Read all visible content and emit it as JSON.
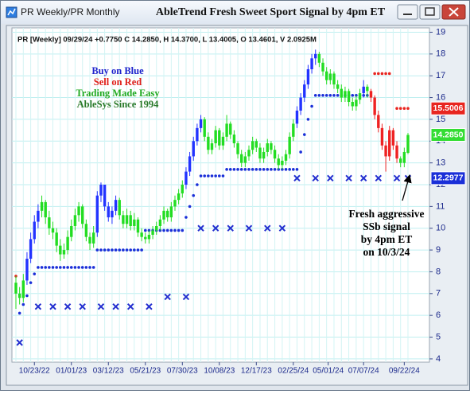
{
  "chart_data": {
    "type": "candlestick",
    "tab_label": "PR Weekly/PR Monthly",
    "title": "AbleTrend Fresh Sweet Sport Signal by 4pm ET",
    "header": "PR [Weekly] 09/29/24 +0.7750 C 14.2850, H 14.3700, L 13.4005, O 13.4601, V 2.0925M",
    "annotations": [
      {
        "text": "Buy on Blue",
        "color": "#1e22cc"
      },
      {
        "text": "Sell on Red",
        "color": "#e0201a"
      },
      {
        "text": "Trading Made Easy",
        "color": "#22aa22"
      },
      {
        "text": "AbleSys Since 1994",
        "color": "#2a7a2a"
      }
    ],
    "callout": [
      "Fresh aggressive",
      "SSb signal",
      "by 4pm ET",
      "on 10/3/24"
    ],
    "x": [
      "09/18/22",
      "09/25/22",
      "10/02/22",
      "10/09/22",
      "10/16/22",
      "10/23/22",
      "10/30/22",
      "11/06/22",
      "11/13/22",
      "11/20/22",
      "11/27/22",
      "12/04/22",
      "12/11/22",
      "12/18/22",
      "12/25/22",
      "01/01/23",
      "01/08/23",
      "01/15/23",
      "01/22/23",
      "01/29/23",
      "02/05/23",
      "02/12/23",
      "02/19/23",
      "02/26/23",
      "03/05/23",
      "03/12/23",
      "03/19/23",
      "03/26/23",
      "04/02/23",
      "04/09/23",
      "04/16/23",
      "04/23/23",
      "04/30/23",
      "05/07/23",
      "05/14/23",
      "05/21/23",
      "05/28/23",
      "06/04/23",
      "06/11/23",
      "06/18/23",
      "06/25/23",
      "07/02/23",
      "07/09/23",
      "07/16/23",
      "07/23/23",
      "07/30/23",
      "08/06/23",
      "08/13/23",
      "08/20/23",
      "08/27/23",
      "09/03/23",
      "09/10/23",
      "09/17/23",
      "09/24/23",
      "10/01/23",
      "10/08/23",
      "10/15/23",
      "10/22/23",
      "10/29/23",
      "11/05/23",
      "11/12/23",
      "11/19/23",
      "11/26/23",
      "12/03/23",
      "12/10/23",
      "12/17/23",
      "12/24/23",
      "12/31/23",
      "01/07/24",
      "01/14/24",
      "01/21/24",
      "01/28/24",
      "02/04/24",
      "02/11/24",
      "02/18/24",
      "02/25/24",
      "03/03/24",
      "03/10/24",
      "03/17/24",
      "03/24/24",
      "03/31/24",
      "04/07/24",
      "04/14/24",
      "04/21/24",
      "04/28/24",
      "05/05/24",
      "05/12/24",
      "05/19/24",
      "05/26/24",
      "06/02/24",
      "06/09/24",
      "06/16/24",
      "06/23/24",
      "06/30/24",
      "07/07/24",
      "07/14/24",
      "07/21/24",
      "07/28/24",
      "08/04/24",
      "08/11/24",
      "08/18/24",
      "08/25/24",
      "09/01/24",
      "09/08/24",
      "09/15/24",
      "09/22/24",
      "09/29/24"
    ],
    "ohlc": [
      [
        7.5,
        7.8,
        6.3,
        7.0
      ],
      [
        7.0,
        7.3,
        6.5,
        6.8
      ],
      [
        6.8,
        7.9,
        6.6,
        7.6
      ],
      [
        7.6,
        8.9,
        7.4,
        8.6
      ],
      [
        8.6,
        9.8,
        8.4,
        9.5
      ],
      [
        9.5,
        10.6,
        9.3,
        10.3
      ],
      [
        10.3,
        11.1,
        10.0,
        10.8
      ],
      [
        10.8,
        11.5,
        10.5,
        11.2
      ],
      [
        11.2,
        11.3,
        10.2,
        10.5
      ],
      [
        10.5,
        10.8,
        9.7,
        10.0
      ],
      [
        10.0,
        10.3,
        9.5,
        9.8
      ],
      [
        9.8,
        10.0,
        8.9,
        9.2
      ],
      [
        9.2,
        9.5,
        8.5,
        8.8
      ],
      [
        8.8,
        9.3,
        8.6,
        9.0
      ],
      [
        9.0,
        9.9,
        8.8,
        9.6
      ],
      [
        9.6,
        10.4,
        9.4,
        10.1
      ],
      [
        10.1,
        10.9,
        9.9,
        10.6
      ],
      [
        10.6,
        11.2,
        10.3,
        11.0
      ],
      [
        11.0,
        11.1,
        10.0,
        10.2
      ],
      [
        10.2,
        10.4,
        9.4,
        9.6
      ],
      [
        9.6,
        9.8,
        9.0,
        9.3
      ],
      [
        9.3,
        10.1,
        9.1,
        9.8
      ],
      [
        9.8,
        11.7,
        9.6,
        11.5
      ],
      [
        11.5,
        12.1,
        11.2,
        12.0
      ],
      [
        12.0,
        12.0,
        10.8,
        11.0
      ],
      [
        11.0,
        11.2,
        10.3,
        10.5
      ],
      [
        10.5,
        11.0,
        10.2,
        10.8
      ],
      [
        10.8,
        11.5,
        10.6,
        11.3
      ],
      [
        11.3,
        11.4,
        10.4,
        10.6
      ],
      [
        10.6,
        10.8,
        10.0,
        10.2
      ],
      [
        10.2,
        10.9,
        10.0,
        10.6
      ],
      [
        10.6,
        10.8,
        9.9,
        10.1
      ],
      [
        10.1,
        10.7,
        9.9,
        10.4
      ],
      [
        10.4,
        10.5,
        9.6,
        9.8
      ],
      [
        9.8,
        10.0,
        9.4,
        9.6
      ],
      [
        9.6,
        9.8,
        9.3,
        9.5
      ],
      [
        9.5,
        9.9,
        9.3,
        9.7
      ],
      [
        9.7,
        10.1,
        9.5,
        9.9
      ],
      [
        9.9,
        10.3,
        9.7,
        10.1
      ],
      [
        10.1,
        10.6,
        9.9,
        10.4
      ],
      [
        10.4,
        11.0,
        10.2,
        10.8
      ],
      [
        10.8,
        10.9,
        10.3,
        10.5
      ],
      [
        10.5,
        11.2,
        10.3,
        11.0
      ],
      [
        11.0,
        11.5,
        10.8,
        11.3
      ],
      [
        11.3,
        11.8,
        11.1,
        11.6
      ],
      [
        11.6,
        12.2,
        11.4,
        12.0
      ],
      [
        12.0,
        12.8,
        11.8,
        12.6
      ],
      [
        12.6,
        13.5,
        12.4,
        13.3
      ],
      [
        13.3,
        14.2,
        13.1,
        14.0
      ],
      [
        14.0,
        14.8,
        13.8,
        14.6
      ],
      [
        14.6,
        15.2,
        14.4,
        15.0
      ],
      [
        15.0,
        15.1,
        14.0,
        14.2
      ],
      [
        14.2,
        14.4,
        13.4,
        13.6
      ],
      [
        13.6,
        14.1,
        13.4,
        13.9
      ],
      [
        13.9,
        14.7,
        13.7,
        14.5
      ],
      [
        14.5,
        14.6,
        13.6,
        13.8
      ],
      [
        13.8,
        14.4,
        13.6,
        14.2
      ],
      [
        14.2,
        15.2,
        14.0,
        14.8
      ],
      [
        14.8,
        14.9,
        14.1,
        14.3
      ],
      [
        14.3,
        14.5,
        13.7,
        13.9
      ],
      [
        13.9,
        14.0,
        13.2,
        13.4
      ],
      [
        13.4,
        13.6,
        12.8,
        13.0
      ],
      [
        13.0,
        13.5,
        12.8,
        13.3
      ],
      [
        13.3,
        13.8,
        13.1,
        13.6
      ],
      [
        13.6,
        14.2,
        13.4,
        14.0
      ],
      [
        14.0,
        14.1,
        13.5,
        13.7
      ],
      [
        13.7,
        13.9,
        13.0,
        13.2
      ],
      [
        13.2,
        13.7,
        13.0,
        13.5
      ],
      [
        13.5,
        14.1,
        13.3,
        13.9
      ],
      [
        13.9,
        14.0,
        13.4,
        13.6
      ],
      [
        13.6,
        13.8,
        13.0,
        13.2
      ],
      [
        13.2,
        13.4,
        12.7,
        12.9
      ],
      [
        12.9,
        13.3,
        12.7,
        13.1
      ],
      [
        13.1,
        13.6,
        12.9,
        13.4
      ],
      [
        13.4,
        14.4,
        13.2,
        14.2
      ],
      [
        14.2,
        15.0,
        14.0,
        14.8
      ],
      [
        14.8,
        15.6,
        14.6,
        15.4
      ],
      [
        15.4,
        16.2,
        15.2,
        16.0
      ],
      [
        16.0,
        16.8,
        15.8,
        16.6
      ],
      [
        16.6,
        17.5,
        16.4,
        17.3
      ],
      [
        17.3,
        18.0,
        17.1,
        17.8
      ],
      [
        17.8,
        18.2,
        17.5,
        18.0
      ],
      [
        18.0,
        18.1,
        17.4,
        17.6
      ],
      [
        17.6,
        17.8,
        17.0,
        17.2
      ],
      [
        17.2,
        17.4,
        16.6,
        16.8
      ],
      [
        16.8,
        17.3,
        16.6,
        17.1
      ],
      [
        17.1,
        17.2,
        16.4,
        16.6
      ],
      [
        16.6,
        16.8,
        16.2,
        16.4
      ],
      [
        16.4,
        16.6,
        15.8,
        16.0
      ],
      [
        16.0,
        16.5,
        15.8,
        16.3
      ],
      [
        16.3,
        16.4,
        15.6,
        15.8
      ],
      [
        15.8,
        16.0,
        15.4,
        15.6
      ],
      [
        15.6,
        16.1,
        15.4,
        15.9
      ],
      [
        15.9,
        16.4,
        15.7,
        16.2
      ],
      [
        16.2,
        16.8,
        16.0,
        16.5
      ],
      [
        16.5,
        16.6,
        16.0,
        16.3
      ],
      [
        16.3,
        16.4,
        15.8,
        16.0
      ],
      [
        16.0,
        16.1,
        15.0,
        15.2
      ],
      [
        15.2,
        15.4,
        14.4,
        14.6
      ],
      [
        14.6,
        14.8,
        13.6,
        13.8
      ],
      [
        13.8,
        14.0,
        12.6,
        13.3
      ],
      [
        13.3,
        14.7,
        13.1,
        14.5
      ],
      [
        14.5,
        14.6,
        13.6,
        13.8
      ],
      [
        13.8,
        14.0,
        13.0,
        13.2
      ],
      [
        13.2,
        13.3,
        12.8,
        13.0
      ],
      [
        13.0,
        13.7,
        12.8,
        13.5
      ],
      [
        13.4601,
        14.37,
        13.4005,
        14.285
      ]
    ],
    "bar_colors": [
      "#2d2",
      "#2d2",
      "#2d2",
      "#23f",
      "#23f",
      "#23f",
      "#23f",
      "#2d2",
      "#2d2",
      "#2d2",
      "#2d2",
      "#2d2",
      "#2d2",
      "#2d2",
      "#2d2",
      "#2d2",
      "#2d2",
      "#2d2",
      "#2d2",
      "#2d2",
      "#2d2",
      "#2d2",
      "#23f",
      "#23f",
      "#23f",
      "#23f",
      "#23f",
      "#23f",
      "#2d2",
      "#2d2",
      "#2d2",
      "#2d2",
      "#2d2",
      "#2d2",
      "#2d2",
      "#2d2",
      "#2d2",
      "#2d2",
      "#2d2",
      "#2d2",
      "#2d2",
      "#2d2",
      "#2d2",
      "#2d2",
      "#2d2",
      "#2d2",
      "#23f",
      "#23f",
      "#23f",
      "#23f",
      "#23f",
      "#2d2",
      "#2d2",
      "#2d2",
      "#2d2",
      "#2d2",
      "#2d2",
      "#2d2",
      "#2d2",
      "#2d2",
      "#2d2",
      "#2d2",
      "#2d2",
      "#2d2",
      "#2d2",
      "#2d2",
      "#2d2",
      "#2d2",
      "#2d2",
      "#2d2",
      "#2d2",
      "#2d2",
      "#2d2",
      "#2d2",
      "#2d2",
      "#2d2",
      "#23f",
      "#23f",
      "#23f",
      "#23f",
      "#23f",
      "#23f",
      "#2d2",
      "#2d2",
      "#2d2",
      "#2d2",
      "#2d2",
      "#2d2",
      "#2d2",
      "#2d2",
      "#2d2",
      "#2d2",
      "#2d2",
      "#2d2",
      "#23f",
      "#2d2",
      "#e22",
      "#e22",
      "#e22",
      "#e22",
      "#e22",
      "#e22",
      "#e22",
      "#e22",
      "#2d2",
      "#2d2",
      "#2d2"
    ],
    "support_dots": {
      "color": "#1a2fd8",
      "values": [
        null,
        6.1,
        6.5,
        6.9,
        7.5,
        7.9,
        8.2,
        8.2,
        8.2,
        8.2,
        8.2,
        8.2,
        8.2,
        8.2,
        8.2,
        8.2,
        8.2,
        8.2,
        8.2,
        8.2,
        8.2,
        8.2,
        9.0,
        9.0,
        9.0,
        9.0,
        9.0,
        9.0,
        9.0,
        9.0,
        9.0,
        9.0,
        9.0,
        9.0,
        9.0,
        9.9,
        9.9,
        9.9,
        9.9,
        9.9,
        9.9,
        9.9,
        9.9,
        9.9,
        9.9,
        9.9,
        10.5,
        11.0,
        11.5,
        12.0,
        12.4,
        12.4,
        12.4,
        12.4,
        12.4,
        12.4,
        12.4,
        12.7,
        12.7,
        12.7,
        12.7,
        12.7,
        12.7,
        12.7,
        12.7,
        12.7,
        12.7,
        12.7,
        12.7,
        12.7,
        12.7,
        12.7,
        12.7,
        12.7,
        12.7,
        12.7,
        12.7,
        13.5,
        14.3,
        15.0,
        15.6,
        16.1,
        16.1,
        16.1,
        16.1,
        16.1,
        16.1,
        16.1,
        16.1,
        16.1,
        16.1,
        16.1,
        16.1,
        16.1,
        16.1,
        16.1,
        null,
        null,
        null,
        null,
        null,
        null,
        null,
        null,
        null,
        null,
        null
      ]
    },
    "resistance_dots": {
      "color": "#e8251f",
      "values": [
        7.8,
        null,
        null,
        null,
        null,
        null,
        null,
        null,
        null,
        null,
        null,
        null,
        null,
        null,
        null,
        null,
        null,
        null,
        null,
        null,
        null,
        null,
        null,
        null,
        null,
        null,
        null,
        null,
        null,
        null,
        null,
        null,
        null,
        null,
        null,
        null,
        null,
        null,
        null,
        null,
        null,
        null,
        null,
        null,
        null,
        null,
        null,
        null,
        null,
        null,
        null,
        null,
        null,
        null,
        null,
        null,
        null,
        null,
        null,
        null,
        null,
        null,
        null,
        null,
        null,
        null,
        null,
        null,
        null,
        null,
        null,
        null,
        null,
        null,
        null,
        null,
        null,
        null,
        null,
        null,
        null,
        null,
        null,
        null,
        null,
        null,
        null,
        null,
        null,
        null,
        null,
        null,
        null,
        null,
        null,
        null,
        null,
        17.1,
        17.1,
        17.1,
        17.1,
        17.1,
        null,
        15.5006,
        15.5006,
        15.5006,
        15.5006
      ]
    },
    "x_markers": {
      "color": "#2430d0",
      "values": [
        null,
        4.75,
        null,
        null,
        null,
        null,
        6.4,
        null,
        null,
        null,
        6.4,
        null,
        null,
        null,
        6.4,
        null,
        null,
        null,
        6.4,
        null,
        null,
        null,
        null,
        6.4,
        null,
        null,
        null,
        6.4,
        null,
        null,
        null,
        6.4,
        null,
        null,
        null,
        null,
        6.4,
        null,
        null,
        null,
        null,
        6.85,
        null,
        null,
        null,
        null,
        6.85,
        null,
        null,
        null,
        10.0,
        null,
        null,
        null,
        10.0,
        null,
        null,
        null,
        10.0,
        null,
        null,
        null,
        null,
        10.0,
        null,
        null,
        null,
        null,
        10.0,
        null,
        null,
        null,
        10.0,
        null,
        null,
        null,
        12.3,
        null,
        null,
        null,
        null,
        12.3,
        null,
        null,
        null,
        12.3,
        null,
        null,
        null,
        null,
        12.3,
        null,
        null,
        null,
        12.3,
        null,
        null,
        null,
        12.3,
        null,
        null,
        null,
        null,
        12.3,
        null,
        null,
        12.2977
      ]
    },
    "price_labels": [
      {
        "value": 15.5006,
        "label": "15.5006",
        "color": "#e8251f"
      },
      {
        "value": 14.285,
        "label": "14.2850",
        "color": "#33dd33"
      },
      {
        "value": 12.2977,
        "label": "12.2977",
        "color": "#1a2fd8"
      }
    ],
    "ylim": [
      3.85,
      19.2
    ],
    "yticks": [
      4,
      5,
      6,
      7,
      8,
      9,
      10,
      11,
      12,
      13,
      14,
      15,
      16,
      17,
      18,
      19
    ],
    "xticks": [
      "10/23/22",
      "01/01/23",
      "03/12/23",
      "05/21/23",
      "07/30/23",
      "10/08/23",
      "12/17/23",
      "02/25/24",
      "05/01/24",
      "07/07/24",
      "09/22/24"
    ],
    "grid": true
  }
}
